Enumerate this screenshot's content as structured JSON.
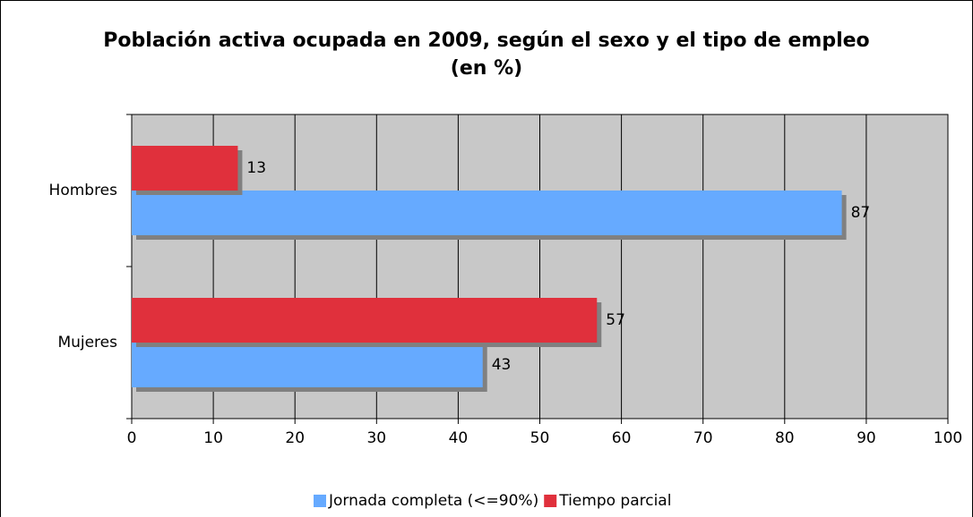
{
  "chart_data": {
    "type": "bar",
    "orientation": "horizontal",
    "title": "Población activa ocupada en 2009, según el sexo y el tipo de empleo (en %)",
    "categories": [
      "Hombres",
      "Mujeres"
    ],
    "series": [
      {
        "name": "Jornada completa (<=90%)",
        "color": "#66aaff",
        "values": [
          87,
          43
        ]
      },
      {
        "name": "Tiempo parcial",
        "color": "#e0303c",
        "values": [
          13,
          57
        ]
      }
    ],
    "xlim": [
      0,
      100
    ],
    "xticks": [
      0,
      10,
      20,
      30,
      40,
      50,
      60,
      70,
      80,
      90,
      100
    ],
    "grid": true,
    "legend": "bottom"
  }
}
